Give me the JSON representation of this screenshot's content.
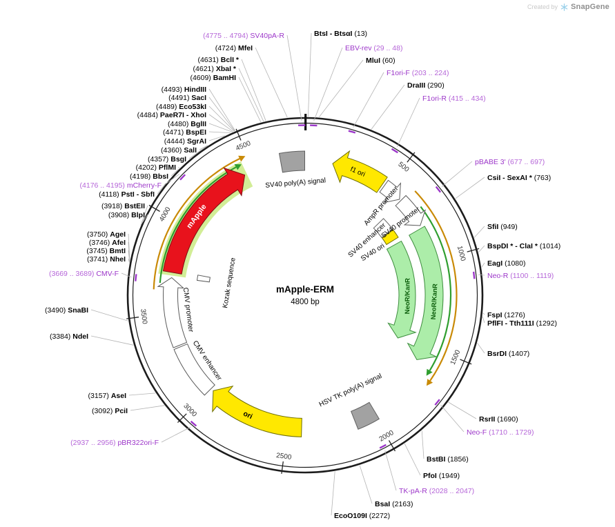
{
  "watermark": {
    "created_by": "Created by",
    "brand": "SnapGene"
  },
  "plasmid": {
    "name": "mApple-ERM",
    "size": "4800 bp",
    "length": 4800,
    "scale_ticks": [
      500,
      1000,
      1500,
      2000,
      2500,
      3000,
      3500,
      4000,
      4500
    ]
  },
  "colors": {
    "site_label": "#000000",
    "primer_name": "#9c36c9",
    "primer_loc": "#b565d8",
    "leader": "#b3b3b3",
    "ring": "#1c1c1c",
    "tick_label": "#333333",
    "amber_arc": "#c98a06",
    "green_arc": "#2f9e2f",
    "glow": "#cdeb8b",
    "yellow": "#ffe800",
    "red": "#e8121c",
    "green_fill": "#aceda9",
    "gray_fill": "#a2a2a2",
    "white_fill": "#ffffff"
  },
  "features": [
    {
      "id": "sv40_polya",
      "label": "SV40 poly(A) signal",
      "start": 4662,
      "end": 4798,
      "shape": "box",
      "color": "gray"
    },
    {
      "id": "f1_ori",
      "label": "f1 ori",
      "start": 465,
      "end": 158,
      "shape": "arrow",
      "color": "yellow"
    },
    {
      "id": "ampr_promoter",
      "label": "AmpR promoter",
      "start": 478,
      "end": 594,
      "shape": "arrow",
      "color": "white"
    },
    {
      "id": "sv40_promoter",
      "label": "SV40 promoter",
      "start": 604,
      "end": 784,
      "shape": "arrow",
      "color": "white"
    },
    {
      "id": "sv40_enhancer",
      "label": "SV40 enhancer",
      "start": 608,
      "end": 706,
      "shape": "box",
      "color": "white"
    },
    {
      "id": "sv40_ori",
      "label": "SV40 ori",
      "start": 712,
      "end": 775,
      "shape": "box",
      "color": "yellow"
    },
    {
      "id": "neor_kanr_outer",
      "label": "NeoR/KanR",
      "start": 800,
      "end": 1600,
      "shape": "arrow",
      "color": "green"
    },
    {
      "id": "neor_kanr_inner",
      "label": "NeoR/KanR",
      "start": 808,
      "end": 1530,
      "shape": "arrow",
      "color": "green"
    },
    {
      "id": "hsv_tk_polya",
      "label": "HSV TK poly(A) signal",
      "start": 1988,
      "end": 2112,
      "shape": "box",
      "color": "gray"
    },
    {
      "id": "ori",
      "label": "ori",
      "start": 2420,
      "end": 2985,
      "shape": "arrow",
      "color": "yellow"
    },
    {
      "id": "cmv_enhancer",
      "label": "CMV enhancer",
      "start": 3002,
      "end": 3300,
      "shape": "box",
      "color": "white"
    },
    {
      "id": "cmv_promoter",
      "label": "CMV promoter",
      "start": 3310,
      "end": 3700,
      "shape": "arrow",
      "color": "white"
    },
    {
      "id": "kozak",
      "label": "Kozak sequence",
      "start": 3705,
      "end": 3742,
      "shape": "box",
      "color": "white"
    },
    {
      "id": "mapple",
      "label": "mApple",
      "start": 3730,
      "end": 4445,
      "shape": "arrow",
      "color": "red"
    }
  ],
  "orf_frames": [
    {
      "start": 620,
      "end": 1690,
      "track": "outer",
      "color": "amber"
    },
    {
      "start": 700,
      "end": 1648,
      "track": "mid",
      "color": "green"
    },
    {
      "start": 3630,
      "end": 4490,
      "track": "outer",
      "color": "amber"
    },
    {
      "start": 3665,
      "end": 4455,
      "track": "mid",
      "color": "green"
    }
  ],
  "sites": [
    {
      "name": "MfeI",
      "loc": "(4724)",
      "bp": 4724
    },
    {
      "name": "BclI *",
      "loc": "(4631)",
      "bp": 4631
    },
    {
      "name": "XbaI *",
      "loc": "(4621)",
      "bp": 4621
    },
    {
      "name": "BamHI",
      "loc": "(4609)",
      "bp": 4609
    },
    {
      "name": "HindIII",
      "loc": "(4493)",
      "bp": 4493
    },
    {
      "name": "SacI",
      "loc": "(4491)",
      "bp": 4491
    },
    {
      "name": "Eco53kI",
      "loc": "(4489)",
      "bp": 4489
    },
    {
      "name": "PaeR7I - XhoI",
      "loc": "(4484)",
      "bp": 4484
    },
    {
      "name": "BglII",
      "loc": "(4480)",
      "bp": 4480
    },
    {
      "name": "BspEI",
      "loc": "(4471)",
      "bp": 4471
    },
    {
      "name": "SgrAI",
      "loc": "(4444)",
      "bp": 4444
    },
    {
      "name": "SalI",
      "loc": "(4360)",
      "bp": 4360
    },
    {
      "name": "BsgI",
      "loc": "(4357)",
      "bp": 4357
    },
    {
      "name": "PflMI",
      "loc": "(4202)",
      "bp": 4202
    },
    {
      "name": "BbsI",
      "loc": "(4198)",
      "bp": 4198
    },
    {
      "name": "PstI - SbfI",
      "loc": "(4118)",
      "bp": 4118
    },
    {
      "name": "BstEII",
      "loc": "(3918)",
      "bp": 3918
    },
    {
      "name": "BlpI",
      "loc": "(3908)",
      "bp": 3908
    },
    {
      "name": "AgeI",
      "loc": "(3750)",
      "bp": 3750
    },
    {
      "name": "AfeI",
      "loc": "(3746)",
      "bp": 3746
    },
    {
      "name": "BmtI",
      "loc": "(3745)",
      "bp": 3745
    },
    {
      "name": "NheI",
      "loc": "(3741)",
      "bp": 3741
    },
    {
      "name": "SnaBI",
      "loc": "(3490)",
      "bp": 3490
    },
    {
      "name": "NdeI",
      "loc": "(3384)",
      "bp": 3384
    },
    {
      "name": "AseI",
      "loc": "(3157)",
      "bp": 3157
    },
    {
      "name": "PciI",
      "loc": "(3092)",
      "bp": 3092
    },
    {
      "name": "BtsI - BtsαI",
      "loc": "(13)",
      "bp": 13
    },
    {
      "name": "MluI",
      "loc": "(60)",
      "bp": 60
    },
    {
      "name": "DraIII",
      "loc": "(290)",
      "bp": 290
    },
    {
      "name": "CsiI - SexAI *",
      "loc": "(763)",
      "bp": 763
    },
    {
      "name": "SfiI",
      "loc": "(949)",
      "bp": 949
    },
    {
      "name": "BspDI * - ClaI *",
      "loc": "(1014)",
      "bp": 1014
    },
    {
      "name": "EagI",
      "loc": "(1080)",
      "bp": 1080
    },
    {
      "name": "FspI",
      "loc": "(1276)",
      "bp": 1276
    },
    {
      "name": "PflFI - Tth111I",
      "loc": "(1292)",
      "bp": 1292
    },
    {
      "name": "BsrDI",
      "loc": "(1407)",
      "bp": 1407
    },
    {
      "name": "RsrII",
      "loc": "(1690)",
      "bp": 1690
    },
    {
      "name": "BstBI",
      "loc": "(1856)",
      "bp": 1856
    },
    {
      "name": "PfoI",
      "loc": "(1949)",
      "bp": 1949
    },
    {
      "name": "BsaI",
      "loc": "(2163)",
      "bp": 2163
    },
    {
      "name": "EcoO109I",
      "loc": "(2272)",
      "bp": 2272
    }
  ],
  "primers": [
    {
      "name": "SV40pA-R",
      "loc": "(4775 .. 4794)",
      "bp": 4785
    },
    {
      "name": "EBV-rev",
      "loc": "(29 .. 48)",
      "bp": 38
    },
    {
      "name": "F1ori-F",
      "loc": "(203 .. 224)",
      "bp": 213
    },
    {
      "name": "F1ori-R",
      "loc": "(415 .. 434)",
      "bp": 424
    },
    {
      "name": "pBABE 3'",
      "loc": "(677 .. 697)",
      "bp": 687
    },
    {
      "name": "Neo-R",
      "loc": "(1100 .. 1119)",
      "bp": 1110
    },
    {
      "name": "Neo-F",
      "loc": "(1710 .. 1729)",
      "bp": 1720
    },
    {
      "name": "TK-pA-R",
      "loc": "(2028 .. 2047)",
      "bp": 2037
    },
    {
      "name": "pBR322ori-F",
      "loc": "(2937 .. 2956)",
      "bp": 2946
    },
    {
      "name": "CMV-F",
      "loc": "(3669 .. 3689)",
      "bp": 3679
    },
    {
      "name": "mCherry-F",
      "loc": "(4176 .. 4195)",
      "bp": 4186
    }
  ]
}
